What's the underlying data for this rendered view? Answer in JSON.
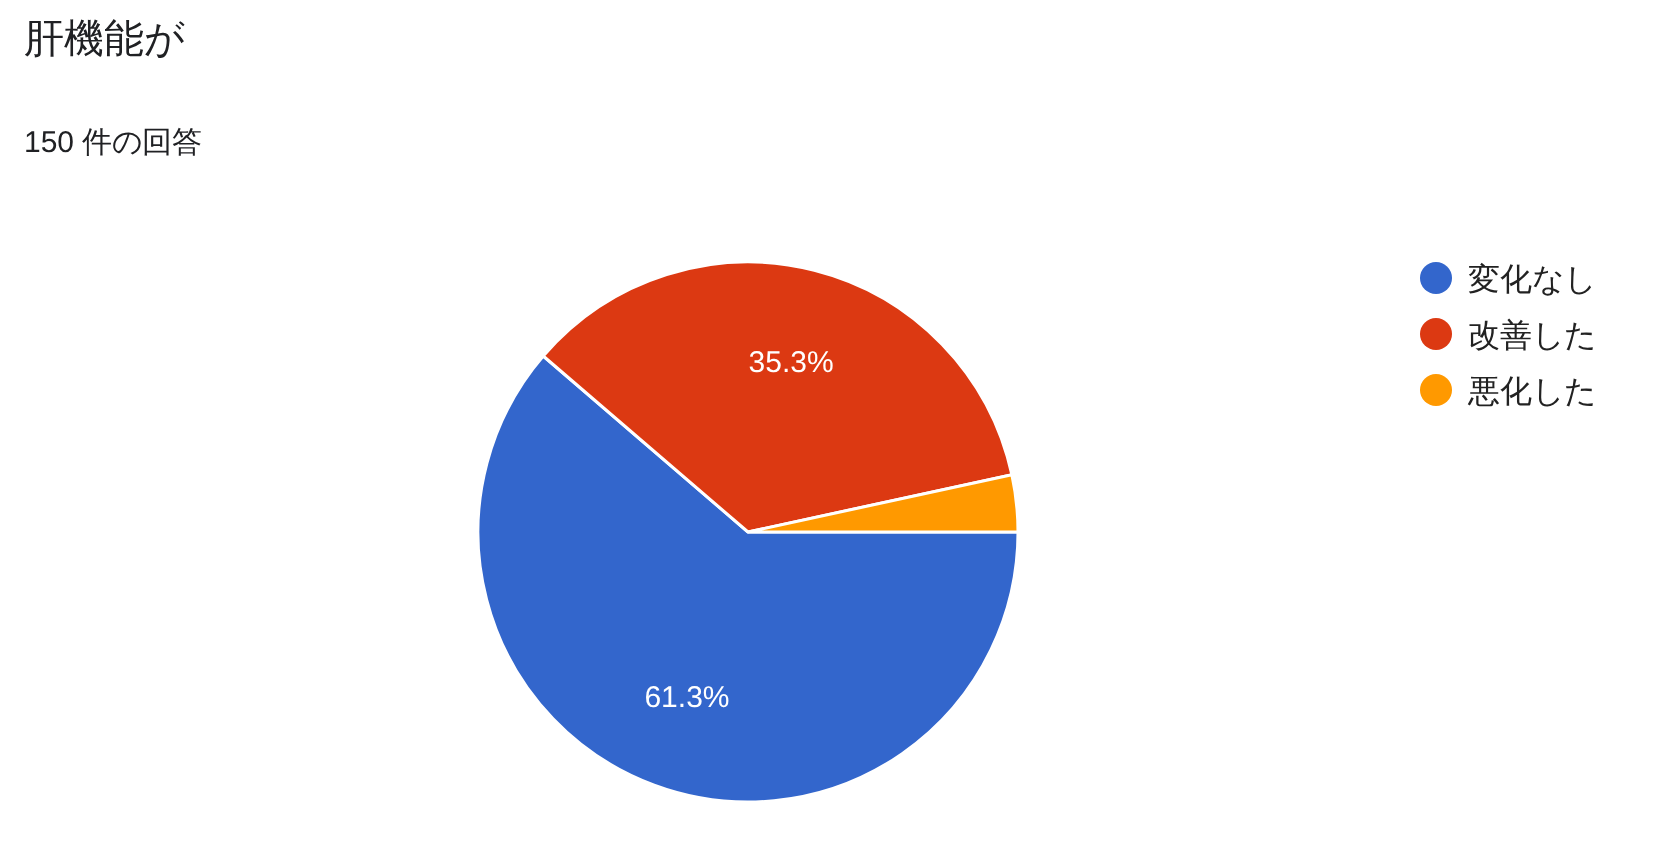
{
  "chart_data": {
    "type": "pie",
    "title": "肝機能が",
    "subtitle": "150 件の回答",
    "categories": [
      "変化なし",
      "改善した",
      "悪化した"
    ],
    "values": [
      61.3,
      35.3,
      3.4
    ],
    "colors": [
      "#3366cc",
      "#dc3912",
      "#ff9900"
    ],
    "value_labels": [
      "61.3%",
      "35.3%",
      null
    ],
    "legend": "right"
  }
}
